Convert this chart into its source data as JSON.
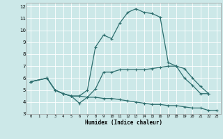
{
  "xlabel": "Humidex (Indice chaleur)",
  "bg_color": "#cce8e8",
  "grid_color": "#ffffff",
  "line_color": "#2d6e6e",
  "xlim": [
    -0.5,
    23.5
  ],
  "ylim": [
    3,
    12.3
  ],
  "xticks": [
    0,
    1,
    2,
    3,
    4,
    5,
    6,
    7,
    8,
    9,
    10,
    11,
    12,
    13,
    14,
    15,
    16,
    17,
    18,
    19,
    20,
    21,
    22,
    23
  ],
  "yticks": [
    3,
    4,
    5,
    6,
    7,
    8,
    9,
    10,
    11,
    12
  ],
  "curve1_x": [
    0,
    2,
    3,
    4,
    5,
    6,
    7,
    8,
    9,
    10,
    11,
    12,
    13,
    14,
    15,
    16,
    17,
    18,
    19,
    20,
    21,
    22
  ],
  "curve1_y": [
    5.7,
    6.0,
    5.0,
    4.7,
    4.5,
    4.5,
    5.0,
    8.6,
    9.6,
    9.3,
    10.6,
    11.5,
    11.8,
    11.5,
    11.4,
    11.1,
    7.3,
    7.0,
    6.0,
    5.4,
    4.7,
    4.7
  ],
  "curve2_x": [
    0,
    2,
    3,
    4,
    5,
    6,
    7,
    8,
    9,
    10,
    11,
    12,
    13,
    14,
    15,
    16,
    17,
    18,
    19,
    20,
    21,
    22
  ],
  "curve2_y": [
    5.7,
    6.0,
    5.0,
    4.7,
    4.5,
    4.5,
    4.4,
    5.1,
    6.5,
    6.5,
    6.7,
    6.7,
    6.7,
    6.7,
    6.8,
    6.9,
    7.0,
    7.0,
    6.8,
    6.0,
    5.3,
    4.7
  ],
  "curve3_x": [
    0,
    2,
    3,
    4,
    5,
    6,
    7,
    8,
    9,
    10,
    11,
    12,
    13,
    14,
    15,
    16,
    17,
    18,
    19,
    20,
    21,
    22,
    23
  ],
  "curve3_y": [
    5.7,
    6.0,
    5.0,
    4.7,
    4.5,
    3.9,
    4.4,
    4.4,
    4.3,
    4.3,
    4.2,
    4.1,
    4.0,
    3.9,
    3.8,
    3.8,
    3.7,
    3.7,
    3.6,
    3.5,
    3.5,
    3.3,
    3.3
  ]
}
